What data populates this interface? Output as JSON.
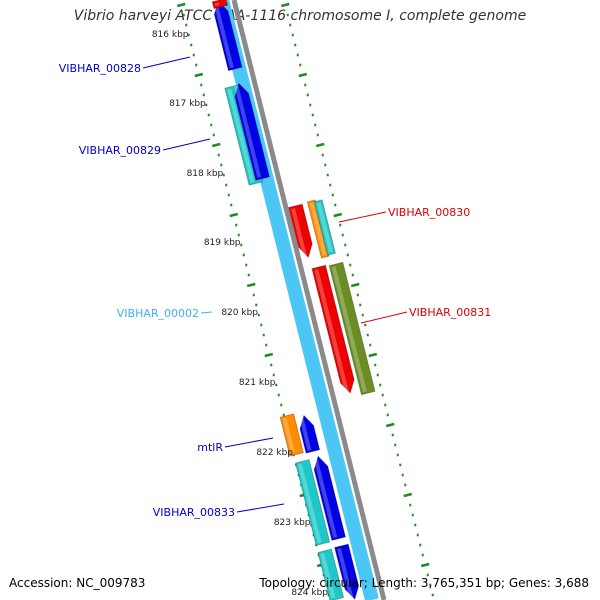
{
  "title": "Vibrio harveyi ATCC BAA-1116 chromosome I, complete genome",
  "footer": {
    "accession": "Accession: NC_009783",
    "topology": "Topology: circular; Length: 3,765,351 bp; Genes: 3,688"
  },
  "ruler_labels": [
    "816 kbp",
    "817 kbp",
    "818 kbp",
    "819 kbp",
    "820 kbp",
    "821 kbp",
    "822 kbp",
    "823 kbp",
    "824 kbp"
  ],
  "colors": {
    "blue_gene": "#0000e6",
    "cyan_gene": "#1ec8c8",
    "light_blue_gene": "#4cc6f5",
    "red_gene": "#ee0000",
    "orange_gene": "#ff8c00",
    "olive_gene": "#6b8e23",
    "backbone": "#8a8a8a",
    "tick_green": "#228b22"
  },
  "labels": [
    {
      "text": "VIBHAR_00828",
      "color": "#0000cc"
    },
    {
      "text": "VIBHAR_00829",
      "color": "#0000cc"
    },
    {
      "text": "VIBHAR_00002",
      "color": "#3ab4ee"
    },
    {
      "text": "mtlR",
      "color": "#0000cc"
    },
    {
      "text": "VIBHAR_00833",
      "color": "#0000cc"
    },
    {
      "text": "VIBHAR_00830",
      "color": "#dd0000"
    },
    {
      "text": "VIBHAR_00831",
      "color": "#dd0000"
    }
  ]
}
